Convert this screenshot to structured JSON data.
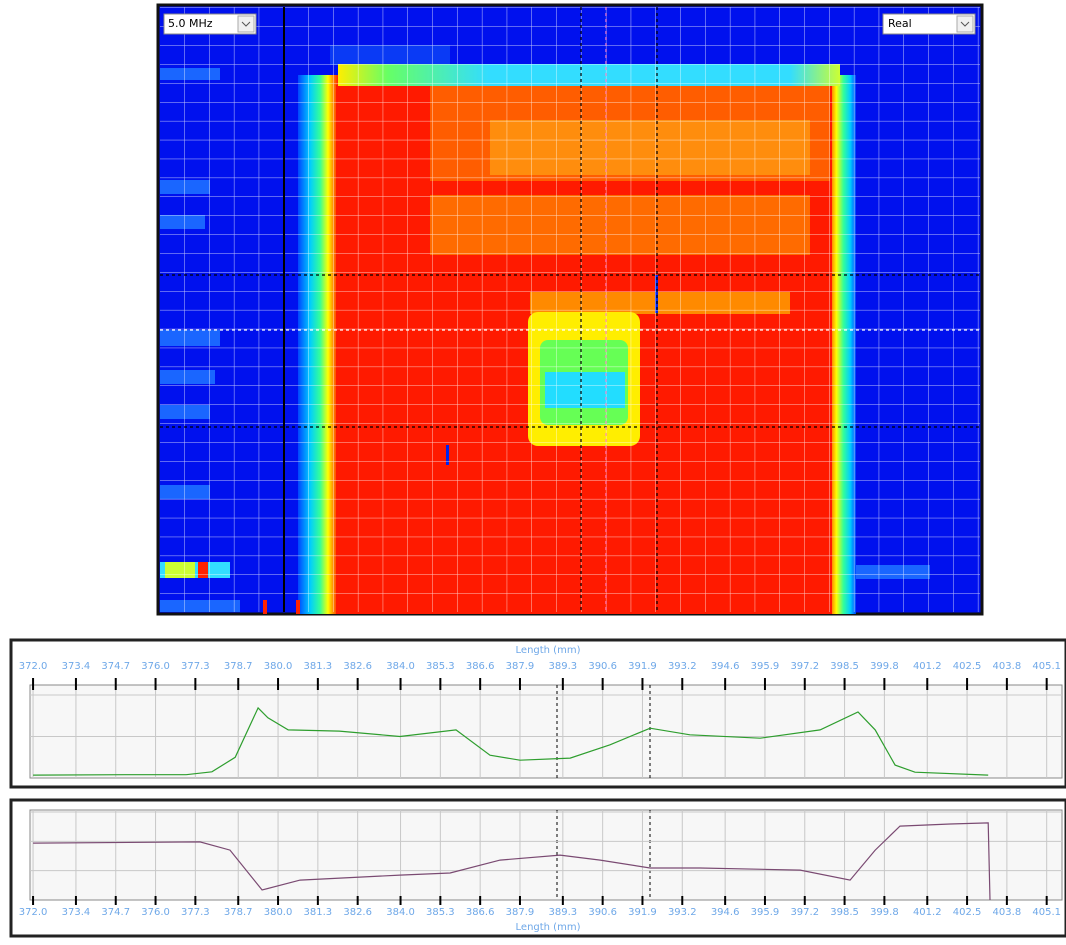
{
  "controls": {
    "frequency": "5.0 MHz",
    "mode": "Real"
  },
  "chart_data": [
    {
      "type": "line",
      "x_label": "Length (mm)",
      "xlim": [
        371.9,
        405.6
      ],
      "xticks": [
        {
          "value": 372.0,
          "label": "372.0"
        },
        {
          "value": 373.4,
          "label": "373.4"
        },
        {
          "value": 374.7,
          "label": "374.7"
        },
        {
          "value": 376.0,
          "label": "376.0"
        },
        {
          "value": 377.3,
          "label": "377.3"
        },
        {
          "value": 378.7,
          "label": "378.7"
        },
        {
          "value": 380.0,
          "label": "380.0"
        },
        {
          "value": 381.3,
          "label": "381.3"
        },
        {
          "value": 382.6,
          "label": "382.6"
        },
        {
          "value": 384.0,
          "label": "384.0"
        },
        {
          "value": 385.3,
          "label": "385.3"
        },
        {
          "value": 386.6,
          "label": "386.6"
        },
        {
          "value": 387.9,
          "label": "387.9"
        },
        {
          "value": 389.3,
          "label": "389.3"
        },
        {
          "value": 390.6,
          "label": "390.6"
        },
        {
          "value": 391.9,
          "label": "391.9"
        },
        {
          "value": 393.2,
          "label": "393.2"
        },
        {
          "value": 394.6,
          "label": "394.6"
        },
        {
          "value": 395.9,
          "label": "395.9"
        },
        {
          "value": 397.2,
          "label": "397.2"
        },
        {
          "value": 398.5,
          "label": "398.5"
        },
        {
          "value": 399.8,
          "label": "399.8"
        },
        {
          "value": 401.2,
          "label": "401.2"
        },
        {
          "value": 402.5,
          "label": "402.5"
        },
        {
          "value": 403.8,
          "label": "403.8"
        },
        {
          "value": 405.1,
          "label": "405.1"
        }
      ],
      "ylim": [
        0,
        2
      ],
      "ygrid": [
        1,
        2
      ],
      "x": [
        372.0,
        375.0,
        377.0,
        377.84,
        378.6,
        379.35,
        379.67,
        380.33,
        382.0,
        383.98,
        385.81,
        386.92,
        387.9,
        389.54,
        390.84,
        392.15,
        393.45,
        395.74,
        397.7,
        398.94,
        399.5,
        400.15,
        400.8,
        403.19
      ],
      "series": [
        {
          "color": "#2e9e2e",
          "values": [
            0.07,
            0.08,
            0.08,
            0.15,
            0.5,
            1.69,
            1.45,
            1.16,
            1.13,
            1.0,
            1.16,
            0.55,
            0.43,
            0.48,
            0.8,
            1.2,
            1.04,
            0.96,
            1.16,
            1.59,
            1.16,
            0.31,
            0.14,
            0.07
          ]
        }
      ]
    },
    {
      "type": "line",
      "x_label": "Length (mm)",
      "xlim": [
        371.9,
        405.6
      ],
      "xticks": [
        {
          "value": 372.0,
          "label": "372.0"
        },
        {
          "value": 373.4,
          "label": "373.4"
        },
        {
          "value": 374.7,
          "label": "374.7"
        },
        {
          "value": 376.0,
          "label": "376.0"
        },
        {
          "value": 377.3,
          "label": "377.3"
        },
        {
          "value": 378.7,
          "label": "378.7"
        },
        {
          "value": 380.0,
          "label": "380.0"
        },
        {
          "value": 381.3,
          "label": "381.3"
        },
        {
          "value": 382.6,
          "label": "382.6"
        },
        {
          "value": 384.0,
          "label": "384.0"
        },
        {
          "value": 385.3,
          "label": "385.3"
        },
        {
          "value": 386.6,
          "label": "386.6"
        },
        {
          "value": 387.9,
          "label": "387.9"
        },
        {
          "value": 389.3,
          "label": "389.3"
        },
        {
          "value": 390.6,
          "label": "390.6"
        },
        {
          "value": 391.9,
          "label": "391.9"
        },
        {
          "value": 393.2,
          "label": "393.2"
        },
        {
          "value": 394.6,
          "label": "394.6"
        },
        {
          "value": 395.9,
          "label": "395.9"
        },
        {
          "value": 397.2,
          "label": "397.2"
        },
        {
          "value": 398.5,
          "label": "398.5"
        },
        {
          "value": 399.8,
          "label": "399.8"
        },
        {
          "value": 401.2,
          "label": "401.2"
        },
        {
          "value": 402.5,
          "label": "402.5"
        },
        {
          "value": 403.8,
          "label": "403.8"
        },
        {
          "value": 405.1,
          "label": "405.1"
        }
      ],
      "ylim": [
        0,
        3
      ],
      "ygrid": [
        1,
        2,
        3
      ],
      "x": [
        372.0,
        377.45,
        378.43,
        379.48,
        380.72,
        383.98,
        385.62,
        387.25,
        389.21,
        390.52,
        392.15,
        393.78,
        397.05,
        398.68,
        399.5,
        400.31,
        401.95,
        403.19,
        403.25
      ],
      "series": [
        {
          "color": "#7a4a72",
          "values": [
            1.94,
            1.98,
            1.7,
            0.34,
            0.68,
            0.85,
            0.92,
            1.36,
            1.53,
            1.36,
            1.09,
            1.09,
            1.02,
            0.68,
            1.7,
            2.52,
            2.59,
            2.63,
            0
          ]
        }
      ]
    }
  ]
}
